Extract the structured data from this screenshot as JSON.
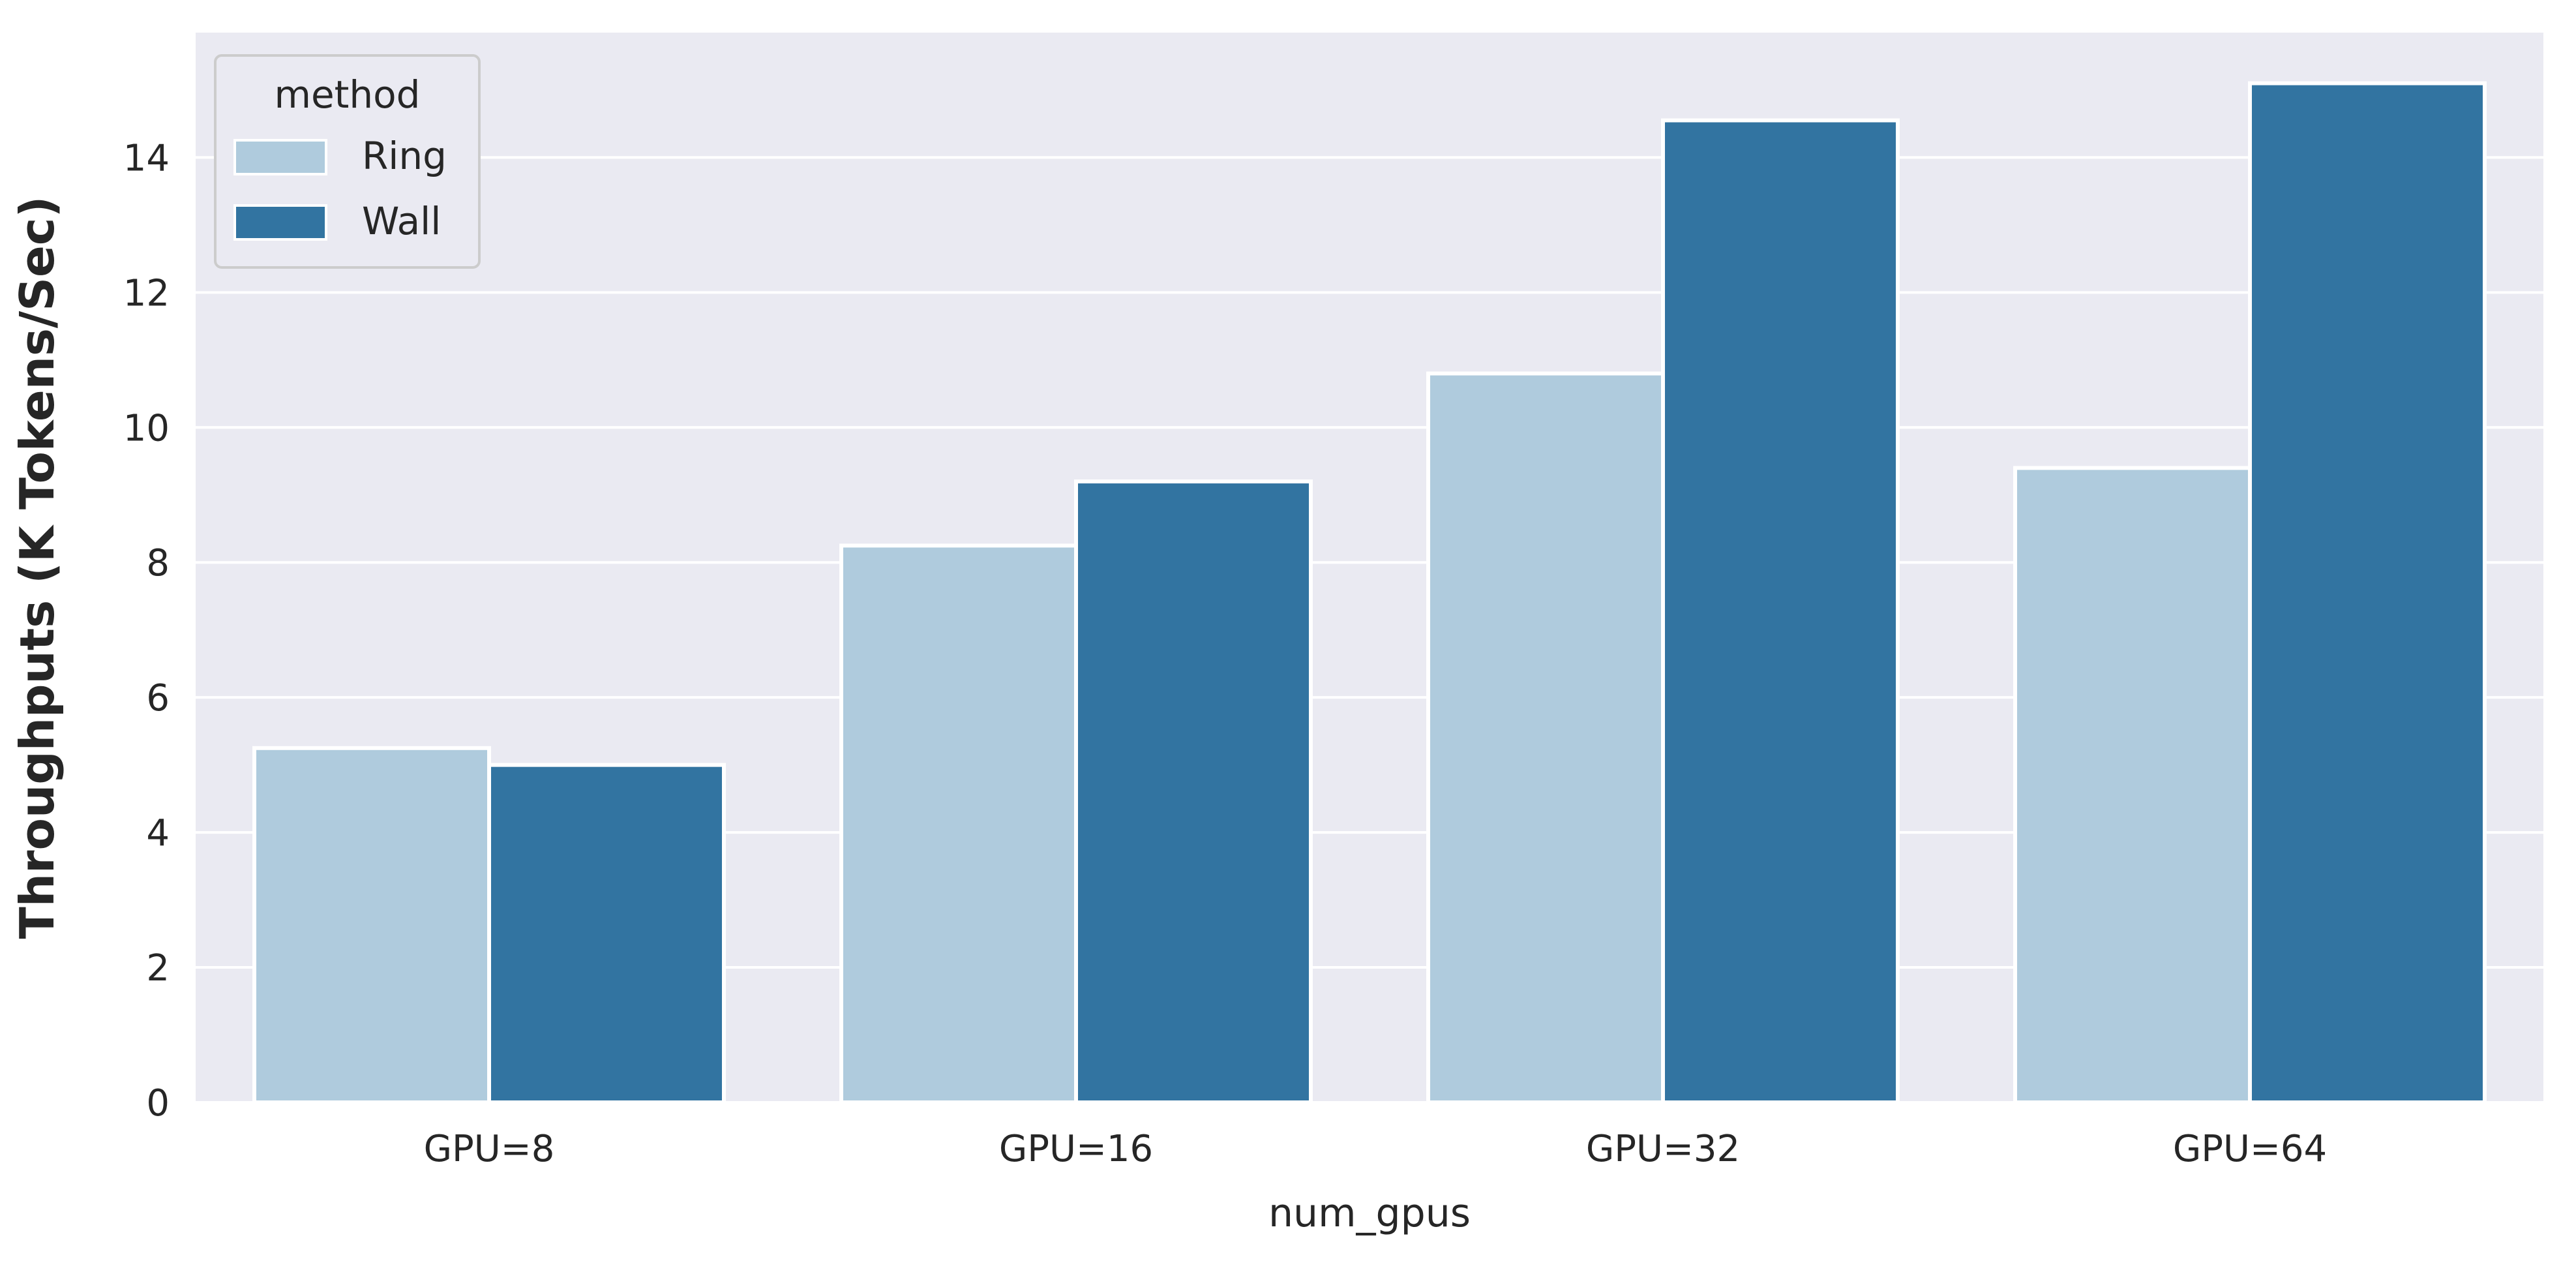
{
  "chart_data": {
    "type": "bar",
    "categories": [
      "GPU=8",
      "GPU=16",
      "GPU=32",
      "GPU=64"
    ],
    "series": [
      {
        "name": "Ring",
        "values": [
          5.25,
          8.25,
          10.8,
          9.4
        ],
        "color": "#afcbdd"
      },
      {
        "name": "Wall",
        "values": [
          5.0,
          9.2,
          14.55,
          15.1
        ],
        "color": "#3274a1"
      }
    ],
    "title": "",
    "xlabel": "num_gpus",
    "ylabel": "Throughputs (K Tokens/Sec)",
    "ylim": [
      0,
      15.85
    ],
    "yticks": [
      0,
      2,
      4,
      6,
      8,
      10,
      12,
      14
    ],
    "grid": true,
    "legend": {
      "title": "method",
      "placement": "top-left"
    },
    "background_color": "#eaeaf2"
  }
}
